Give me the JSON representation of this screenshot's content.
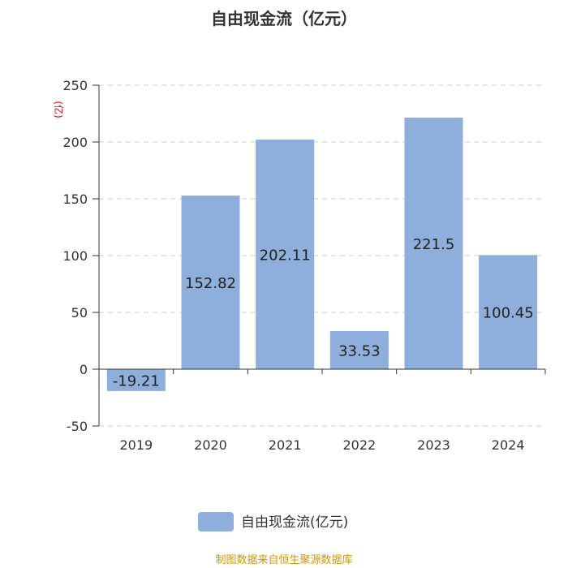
{
  "chart_data": {
    "type": "bar",
    "title": "自由现金流（亿元）",
    "ylabel": "(亿)",
    "categories": [
      "2019",
      "2020",
      "2021",
      "2022",
      "2023",
      "2024"
    ],
    "series": [
      {
        "name": "自由现金流(亿元)",
        "values": [
          -19.21,
          152.82,
          202.11,
          33.53,
          221.5,
          100.45
        ]
      }
    ],
    "data_labels": [
      "-19.21",
      "152.82",
      "202.11",
      "33.53",
      "221.5",
      "100.45"
    ],
    "yticks": [
      "250",
      "200",
      "150",
      "100",
      "50",
      "0",
      "-50"
    ],
    "ytick_values": [
      250,
      200,
      150,
      100,
      50,
      0,
      -50
    ],
    "ylim": [
      -50,
      250
    ],
    "grid": true,
    "legend_position": "bottom-center",
    "bar_color": "#8eaedc",
    "source": "制图数据来自恒生聚源数据库"
  }
}
